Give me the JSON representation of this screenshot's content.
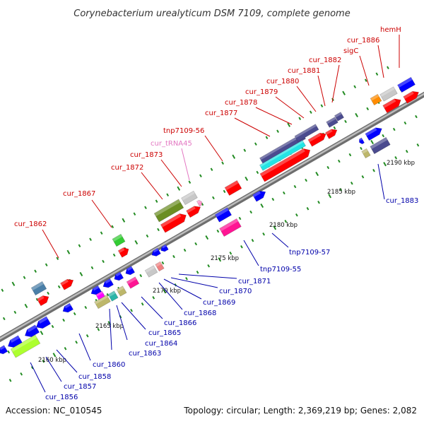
{
  "title": "Corynebacterium urealyticum DSM 7109, complete genome",
  "footer": {
    "accession": "Accession: NC_010545",
    "topology": "Topology: circular; Length: 2,369,219 bp; Genes: 2,082"
  },
  "colors": {
    "label_red": "#cc0000",
    "label_blue": "#0000aa",
    "label_pink": "#e377c2",
    "backbone": "#888888",
    "tick_green": "#228b22"
  },
  "kbp_labels": [
    "2160 kbp",
    "2165 kbp",
    "2170 kbp",
    "2175 kbp",
    "2180 kbp",
    "2185 kbp",
    "2190 kbp"
  ],
  "gene_labels_top": [
    "cur_1862",
    "cur_1867",
    "cur_1872",
    "cur_1873",
    "cur_tRNA45",
    "tnp7109-56",
    "cur_1877",
    "cur_1878",
    "cur_1879",
    "cur_1880",
    "cur_1881",
    "cur_1882",
    "sigC",
    "cur_1886",
    "hemH"
  ],
  "gene_labels_bottom": [
    "cur_1856",
    "cur_1857",
    "cur_1858",
    "cur_1860",
    "cur_1863",
    "cur_1864",
    "cur_1865",
    "cur_1866",
    "cur_1868",
    "cur_1869",
    "cur_1870",
    "cur_1871",
    "tnp7109-55",
    "tnp7109-57",
    "cur_1883"
  ]
}
